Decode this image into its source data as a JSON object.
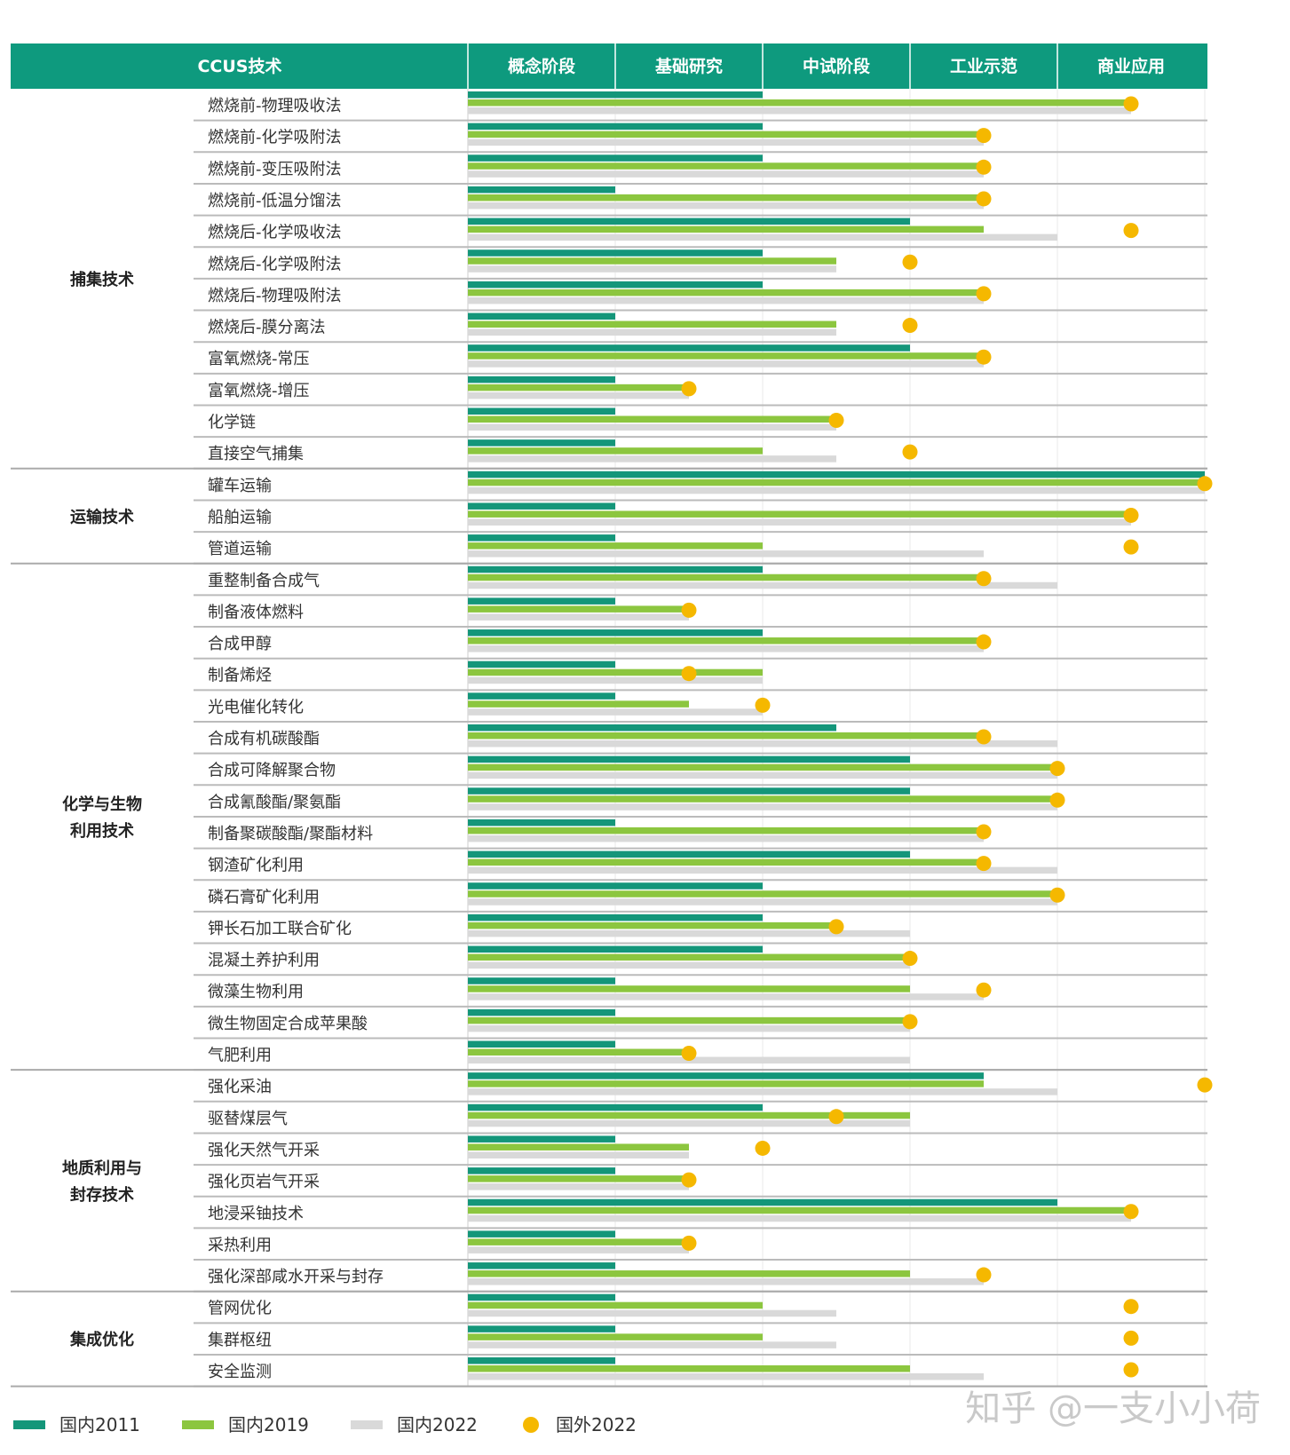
{
  "chart_data": {
    "type": "bar",
    "header": {
      "category_column": "CCUS技术",
      "stages": [
        "概念阶段",
        "基础研究",
        "中试阶段",
        "工业示范",
        "商业应用"
      ]
    },
    "series": [
      {
        "key": "d2011",
        "name": "国内2011",
        "color": "#14967a"
      },
      {
        "key": "d2019",
        "name": "国内2019",
        "color": "#8cc63f"
      },
      {
        "key": "d2022",
        "name": "国内2022",
        "color": "#d9d9d9"
      },
      {
        "key": "f2022",
        "name": "国外2022",
        "color": "#f5b800"
      }
    ],
    "value_unit": "stage index (0 = start of 概念阶段, 5 = end of 商业应用)",
    "groups": [
      {
        "name": "捕集技术",
        "rows": [
          {
            "label": "燃烧前-物理吸收法",
            "d2011": 2,
            "d2019": 4.5,
            "d2022": 4.5,
            "f2022": 4.5
          },
          {
            "label": "燃烧前-化学吸附法",
            "d2011": 2,
            "d2019": 3.5,
            "d2022": 3.5,
            "f2022": 3.5
          },
          {
            "label": "燃烧前-变压吸附法",
            "d2011": 2,
            "d2019": 3.5,
            "d2022": 3.5,
            "f2022": 3.5
          },
          {
            "label": "燃烧前-低温分馏法",
            "d2011": 1,
            "d2019": 3.5,
            "d2022": 3.5,
            "f2022": 3.5
          },
          {
            "label": "燃烧后-化学吸收法",
            "d2011": 3,
            "d2019": 3.5,
            "d2022": 4,
            "f2022": 4.5
          },
          {
            "label": "燃烧后-化学吸附法",
            "d2011": 2,
            "d2019": 2.5,
            "d2022": 2.5,
            "f2022": 3
          },
          {
            "label": "燃烧后-物理吸附法",
            "d2011": 2,
            "d2019": 3.5,
            "d2022": 3.5,
            "f2022": 3.5
          },
          {
            "label": "燃烧后-膜分离法",
            "d2011": 1,
            "d2019": 2.5,
            "d2022": 2.5,
            "f2022": 3
          },
          {
            "label": "富氧燃烧-常压",
            "d2011": 3,
            "d2019": 3.5,
            "d2022": 3.5,
            "f2022": 3.5
          },
          {
            "label": "富氧燃烧-增压",
            "d2011": 1,
            "d2019": 1.5,
            "d2022": 1.5,
            "f2022": 1.5
          },
          {
            "label": "化学链",
            "d2011": 1,
            "d2019": 2.5,
            "d2022": 2.5,
            "f2022": 2.5
          },
          {
            "label": "直接空气捕集",
            "d2011": 1,
            "d2019": 2,
            "d2022": 2.5,
            "f2022": 3
          }
        ]
      },
      {
        "name": "运输技术",
        "rows": [
          {
            "label": "罐车运输",
            "d2011": 5,
            "d2019": 5,
            "d2022": 5,
            "f2022": 5
          },
          {
            "label": "船舶运输",
            "d2011": 1,
            "d2019": 4.5,
            "d2022": 4.5,
            "f2022": 4.5
          },
          {
            "label": "管道运输",
            "d2011": 1,
            "d2019": 2,
            "d2022": 3.5,
            "f2022": 4.5
          }
        ]
      },
      {
        "name": "化学与生物利用技术",
        "rows": [
          {
            "label": "重整制备合成气",
            "d2011": 2,
            "d2019": 3.5,
            "d2022": 4,
            "f2022": 3.5
          },
          {
            "label": "制备液体燃料",
            "d2011": 1,
            "d2019": 1.5,
            "d2022": 1.5,
            "f2022": 1.5
          },
          {
            "label": "合成甲醇",
            "d2011": 2,
            "d2019": 3.5,
            "d2022": 3.5,
            "f2022": 3.5
          },
          {
            "label": "制备烯烃",
            "d2011": 1,
            "d2019": 2,
            "d2022": 2,
            "f2022": 1.5
          },
          {
            "label": "光电催化转化",
            "d2011": 1,
            "d2019": 1.5,
            "d2022": 2,
            "f2022": 2
          },
          {
            "label": "合成有机碳酸酯",
            "d2011": 2.5,
            "d2019": 3.5,
            "d2022": 4,
            "f2022": 3.5
          },
          {
            "label": "合成可降解聚合物",
            "d2011": 3,
            "d2019": 4,
            "d2022": 4,
            "f2022": 4
          },
          {
            "label": "合成氰酸酯/聚氨酯",
            "d2011": 3,
            "d2019": 4,
            "d2022": 4,
            "f2022": 4
          },
          {
            "label": "制备聚碳酸酯/聚酯材料",
            "d2011": 1,
            "d2019": 3.5,
            "d2022": 3.5,
            "f2022": 3.5
          },
          {
            "label": "钢渣矿化利用",
            "d2011": 3,
            "d2019": 3.5,
            "d2022": 4,
            "f2022": 3.5
          },
          {
            "label": "磷石膏矿化利用",
            "d2011": 2,
            "d2019": 4,
            "d2022": 4,
            "f2022": 4
          },
          {
            "label": "钾长石加工联合矿化",
            "d2011": 2,
            "d2019": 2.5,
            "d2022": 3,
            "f2022": 2.5
          },
          {
            "label": "混凝土养护利用",
            "d2011": 2,
            "d2019": 3,
            "d2022": 3,
            "f2022": 3
          },
          {
            "label": "微藻生物利用",
            "d2011": 1,
            "d2019": 3,
            "d2022": 3.5,
            "f2022": 3.5
          },
          {
            "label": "微生物固定合成苹果酸",
            "d2011": 1,
            "d2019": 3,
            "d2022": 3,
            "f2022": 3
          },
          {
            "label": "气肥利用",
            "d2011": 1,
            "d2019": 1.5,
            "d2022": 3,
            "f2022": 1.5
          }
        ]
      },
      {
        "name": "地质利用与封存技术",
        "rows": [
          {
            "label": "强化采油",
            "d2011": 3.5,
            "d2019": 3.5,
            "d2022": 4,
            "f2022": 5
          },
          {
            "label": "驱替煤层气",
            "d2011": 2,
            "d2019": 3,
            "d2022": 3,
            "f2022": 2.5
          },
          {
            "label": "强化天然气开采",
            "d2011": 1,
            "d2019": 1.5,
            "d2022": 1.5,
            "f2022": 2
          },
          {
            "label": "强化页岩气开采",
            "d2011": 1,
            "d2019": 1.5,
            "d2022": 1.5,
            "f2022": 1.5
          },
          {
            "label": "地浸采铀技术",
            "d2011": 4,
            "d2019": 4.5,
            "d2022": 4.5,
            "f2022": 4.5
          },
          {
            "label": "采热利用",
            "d2011": 1,
            "d2019": 1.5,
            "d2022": 1.5,
            "f2022": 1.5
          },
          {
            "label": "强化深部咸水开采与封存",
            "d2011": 1,
            "d2019": 3,
            "d2022": 3.5,
            "f2022": 3.5
          }
        ]
      },
      {
        "name": "集成优化",
        "rows": [
          {
            "label": "管网优化",
            "d2011": 1,
            "d2019": 2,
            "d2022": 2.5,
            "f2022": 4.5
          },
          {
            "label": "集群枢纽",
            "d2011": 1,
            "d2019": 2,
            "d2022": 2.5,
            "f2022": 4.5
          },
          {
            "label": "安全监测",
            "d2011": 1,
            "d2019": 3,
            "d2022": 3.5,
            "f2022": 4.5
          }
        ]
      }
    ],
    "legend_position": "bottom",
    "watermark": "知乎 @一支小小荷"
  }
}
